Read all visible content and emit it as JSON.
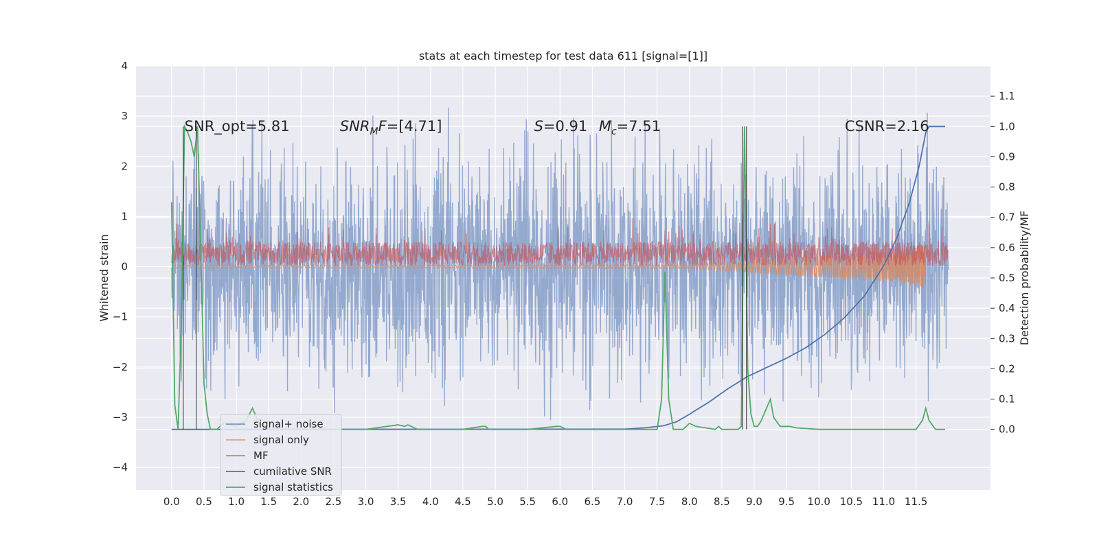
{
  "chart_data": {
    "type": "line",
    "title": "stats at each timestep for test data 611 [signal=[1]]",
    "ylabel_left": "Whitened strain",
    "ylabel_right": "Detection probability/MF",
    "ylim_left": [
      -4.45,
      4
    ],
    "ylim_right": [
      -0.2,
      1.2
    ],
    "xlim": [
      -0.55,
      12.65
    ],
    "x_ticks": [
      "0.0",
      "0.5",
      "1.0",
      "1.5",
      "2.0",
      "2.5",
      "3.0",
      "3.5",
      "4.0",
      "4.5",
      "5.0",
      "5.5",
      "6.0",
      "6.5",
      "7.0",
      "7.5",
      "8.0",
      "8.5",
      "9.0",
      "9.5",
      "10.0",
      "10.5",
      "11.0",
      "11.5"
    ],
    "y_ticks_left": [
      "−4",
      "−3",
      "−2",
      "−1",
      "0",
      "1",
      "2",
      "3",
      "4"
    ],
    "y_ticks_right": [
      "0.0",
      "0.1",
      "0.2",
      "0.3",
      "0.4",
      "0.5",
      "0.6",
      "0.7",
      "0.8",
      "0.9",
      "1.0",
      "1.1"
    ],
    "grid": true,
    "legend_position": "lower-left",
    "annotations": [
      {
        "id": "snr_opt",
        "x": 0.2,
        "y": 2.8,
        "text": "SNR_opt=5.81"
      },
      {
        "id": "snr_mf",
        "x": 2.6,
        "y": 2.8,
        "text": "SNR_MF=[4.71]"
      },
      {
        "id": "s_val",
        "x": 5.6,
        "y": 2.8,
        "text": "S=0.91"
      },
      {
        "id": "mc_val",
        "x": 6.6,
        "y": 2.8,
        "text": "M_c=7.51"
      },
      {
        "id": "csnr",
        "x": 10.4,
        "y": 2.8,
        "text": "CSNR=2.16"
      }
    ],
    "series": [
      {
        "name": "signal+ noise",
        "color": "#4c72b0",
        "axis": "left",
        "kind": "noise",
        "x_range": [
          0,
          12
        ],
        "amplitude_range": [
          -3.6,
          3.5
        ]
      },
      {
        "name": "signal only",
        "color": "#dd8452",
        "axis": "left",
        "kind": "chirp",
        "x_range": [
          0,
          11.65
        ],
        "amplitude_range": [
          -0.8,
          0.8
        ]
      },
      {
        "name": "MF",
        "color": "#c44e52",
        "axis": "right",
        "kind": "band",
        "x_range": [
          0,
          12
        ],
        "band": [
          0.54,
          0.62
        ]
      },
      {
        "name": "cumilative SNR",
        "color": "#4c72b0",
        "axis": "right",
        "x": [
          0,
          7.0,
          7.3,
          7.6,
          7.8,
          8.0,
          8.3,
          8.6,
          8.9,
          9.2,
          9.5,
          9.8,
          10.1,
          10.4,
          10.7,
          11.0,
          11.2,
          11.4,
          11.55,
          11.65,
          11.7,
          11.95
        ],
        "y": [
          0,
          0.001,
          0.005,
          0.012,
          0.025,
          0.05,
          0.09,
          0.135,
          0.175,
          0.205,
          0.235,
          0.27,
          0.315,
          0.37,
          0.44,
          0.54,
          0.63,
          0.75,
          0.87,
          0.98,
          1.0,
          1.0
        ]
      },
      {
        "name": "signal statistics",
        "color": "#55a868",
        "axis": "right",
        "x": [
          0,
          0.05,
          0.1,
          0.15,
          0.2,
          0.25,
          0.3,
          0.35,
          0.4,
          0.45,
          0.5,
          0.55,
          0.6,
          0.7,
          0.8,
          1.0,
          1.15,
          1.25,
          1.35,
          1.5,
          2.0,
          3.0,
          3.5,
          3.6,
          3.65,
          3.7,
          3.8,
          3.9,
          4.5,
          4.8,
          4.85,
          4.9,
          5.5,
          5.95,
          6.0,
          6.1,
          6.5,
          7.0,
          7.5,
          7.57,
          7.62,
          7.68,
          7.75,
          7.9,
          8.0,
          8.1,
          8.4,
          8.45,
          8.5,
          8.75,
          8.8,
          8.85,
          8.9,
          8.95,
          9.0,
          9.05,
          9.1,
          9.15,
          9.25,
          9.3,
          9.4,
          9.5,
          9.55,
          9.65,
          10.0,
          11.0,
          11.5,
          11.6,
          11.65,
          11.7,
          11.8,
          11.95
        ],
        "y": [
          0.75,
          0.08,
          0,
          0.35,
          1.0,
          0.98,
          0.95,
          0.9,
          1.0,
          0.6,
          0.15,
          0.05,
          0,
          0,
          0.02,
          0.01,
          0.03,
          0.07,
          0.02,
          0,
          0,
          0,
          0.015,
          0.01,
          0.015,
          0.01,
          0,
          0,
          0,
          0.01,
          0.01,
          0,
          0,
          0.01,
          0.01,
          0,
          0,
          0,
          0,
          0.1,
          0.52,
          0.1,
          0,
          0,
          0.02,
          0.01,
          0,
          0.01,
          0,
          0,
          0.01,
          1.0,
          0.2,
          0.05,
          0.01,
          0.01,
          0.025,
          0.05,
          0.1,
          0.04,
          0.01,
          0.01,
          0.01,
          0.005,
          0,
          0,
          0,
          0.03,
          0.07,
          0.03,
          0,
          0
        ]
      }
    ],
    "vertical_markers": [
      {
        "color": "#262626",
        "x": 0.18
      },
      {
        "color": "#262626",
        "x": 0.38
      },
      {
        "color": "#262626",
        "x": 8.82
      },
      {
        "color": "#262626",
        "x": 8.88
      }
    ]
  }
}
